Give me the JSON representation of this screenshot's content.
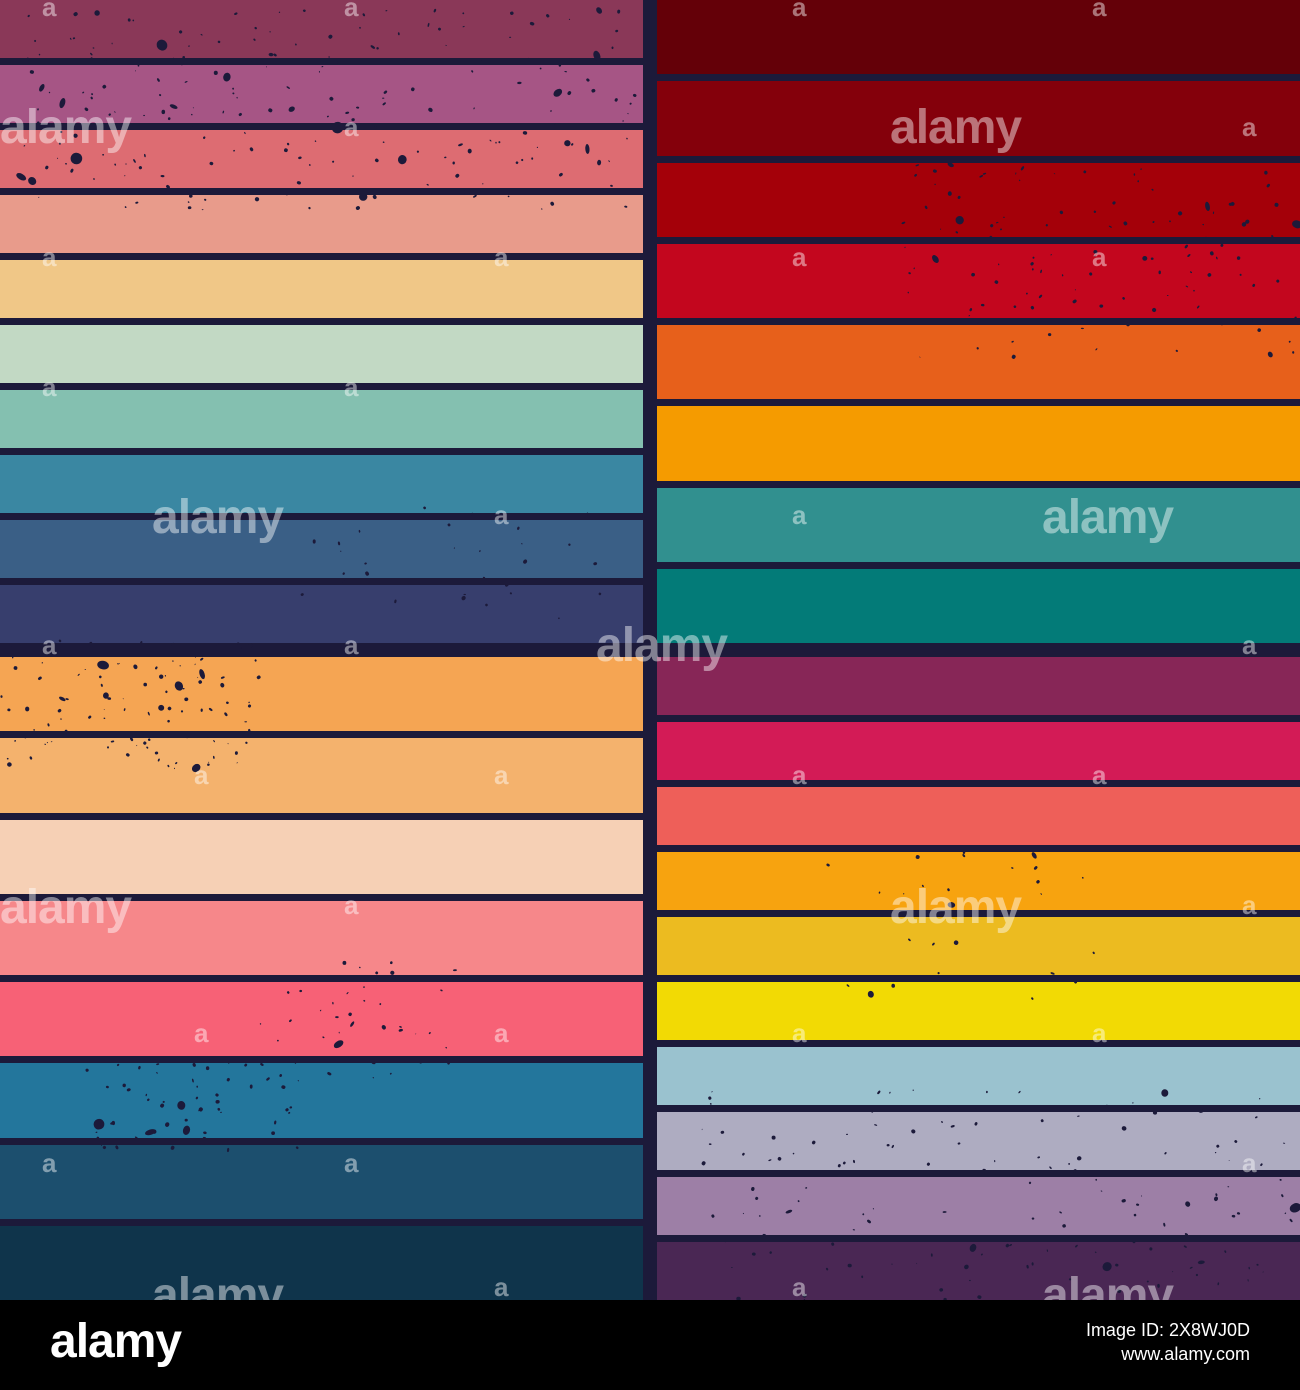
{
  "palettes": {
    "top_left": [
      "#8a3858",
      "#a65585",
      "#dd6c72",
      "#e89b8b",
      "#f0c787",
      "#c2d9c4",
      "#84c0b0",
      "#3a87a2",
      "#3a5f86",
      "#373e6d"
    ],
    "top_right": [
      "#640008",
      "#84000b",
      "#a40009",
      "#c3061e",
      "#e7601b",
      "#f59b00",
      "#31908f",
      "#037b78"
    ],
    "bottom_left": [
      "#f5a553",
      "#f4b26d",
      "#f6d0b5",
      "#f6878a",
      "#f76176",
      "#23769c",
      "#1c4f6e",
      "#0f344b"
    ],
    "bottom_right": [
      "#872657",
      "#d31b56",
      "#ee5f59",
      "#f7a30f",
      "#ecbb20",
      "#f2da04",
      "#9ac2cf",
      "#aeacc1",
      "#9d7fa6",
      "#4a2754"
    ]
  },
  "background_color": "#1c1a3a",
  "speckle_color": "#1c1a3a",
  "watermark": {
    "text": "alamy",
    "small_text": "a"
  },
  "footer": {
    "logo": "alamy",
    "image_id": "Image ID: 2X8WJ0D",
    "url": "www.alamy.com"
  }
}
